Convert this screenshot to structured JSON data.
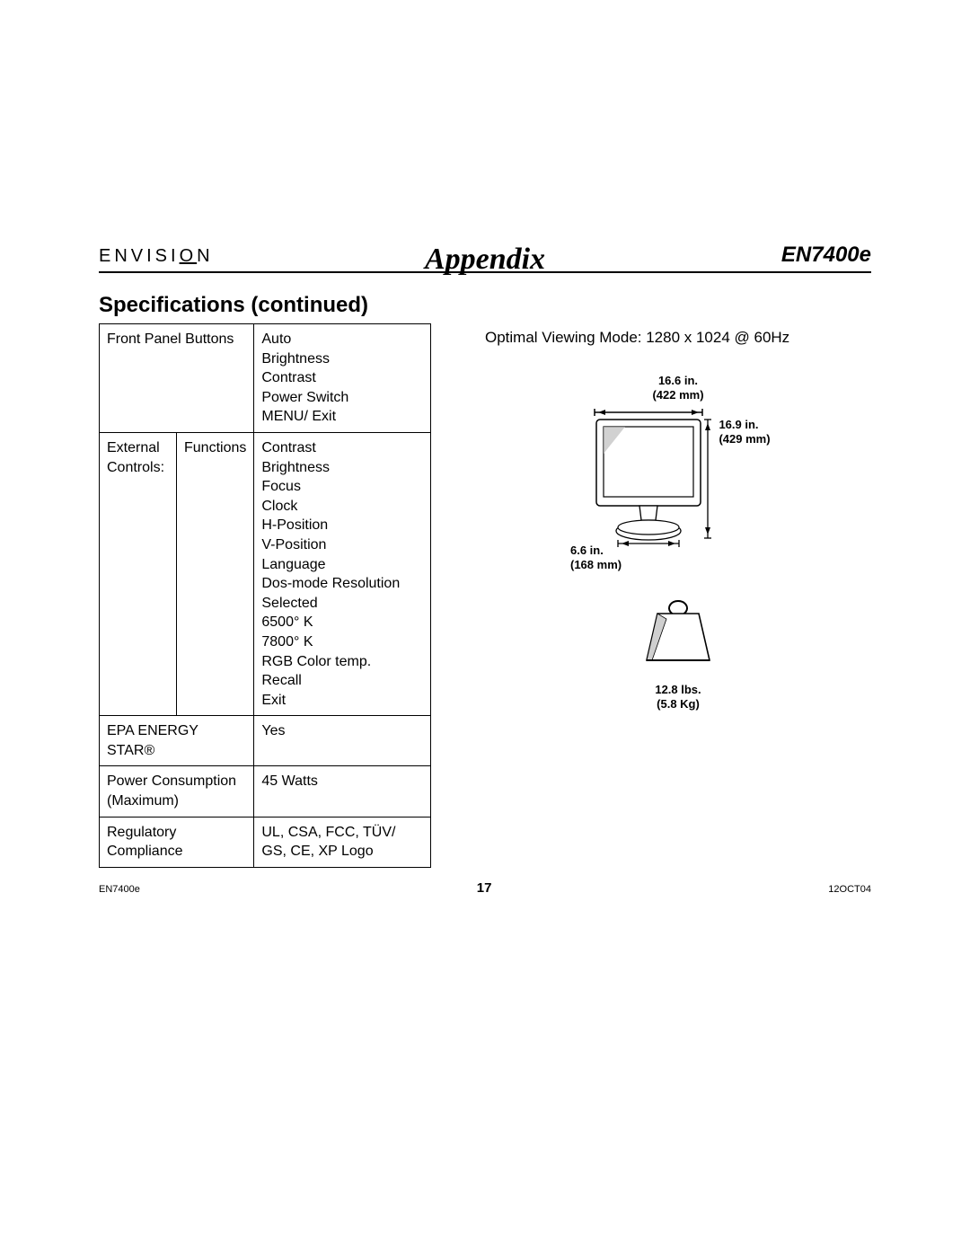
{
  "header": {
    "brand_prefix": "ENVISI",
    "brand_o": "O",
    "brand_suffix": "N",
    "title": "Appendix",
    "model": "EN7400e"
  },
  "section_title": "Specifications (continued)",
  "table": {
    "rows": [
      {
        "c1": "Front Panel Buttons",
        "c2": "Auto\nBrightness\nContrast\nPower Switch\nMENU/ Exit"
      },
      {
        "c1a": "External Controls:",
        "c1b": "Functions",
        "c2": "Contrast\nBrightness\nFocus\nClock\nH-Position\nV-Position\nLanguage\nDos-mode Resolution\nSelected\n6500° K\n7800° K\nRGB Color temp.\nRecall\nExit"
      },
      {
        "c1": "EPA ENERGY STAR®",
        "c2": "Yes"
      },
      {
        "c1": "Power Consumption (Maximum)",
        "c2": "45 Watts"
      },
      {
        "c1": "Regulatory Compliance",
        "c2": "UL, CSA, FCC, TÜV/ GS, CE, XP Logo"
      }
    ]
  },
  "right": {
    "optimal": "Optimal Viewing Mode: 1280 x 1024 @ 60Hz",
    "width_label": "16.6 in.\n(422 mm)",
    "height_label": "16.9 in.\n(429 mm)",
    "base_label": "6.6 in.\n(168 mm)",
    "weight_label": "12.8 lbs.\n(5.8 Kg)"
  },
  "footer": {
    "left": "EN7400e",
    "page": "17",
    "right": "12OCT04"
  },
  "style": {
    "page_bg": "#ffffff",
    "text_color": "#000000",
    "rule_color": "#000000",
    "font_body": "Arial",
    "font_title": "Georgia",
    "diagram_stroke": "#000000",
    "diagram_fill": "#ffffff",
    "diagram_shadow": "#7a7a7a"
  }
}
